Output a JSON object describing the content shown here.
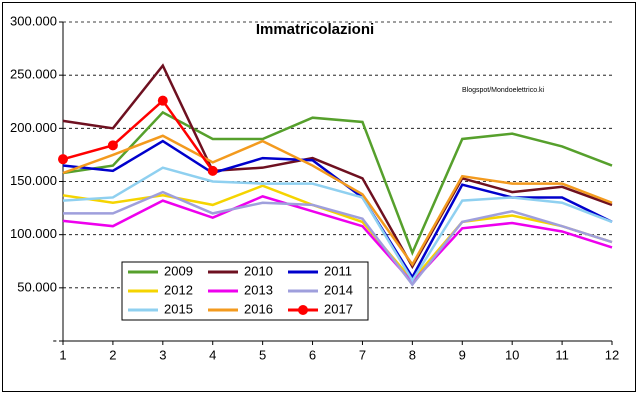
{
  "chart_data": {
    "type": "line",
    "title": "Immatricolazioni",
    "annotation": "Blogspot/Mondoelettrico.ki",
    "x": [
      1,
      2,
      3,
      4,
      5,
      6,
      7,
      8,
      9,
      10,
      11,
      12
    ],
    "xlim": [
      1,
      12
    ],
    "xticks": [
      1,
      2,
      3,
      4,
      5,
      6,
      7,
      8,
      9,
      10,
      11,
      12
    ],
    "ylim": [
      0,
      300000
    ],
    "yticks": [
      {
        "value": 0,
        "label": "-"
      },
      {
        "value": 50000,
        "label": "50.000"
      },
      {
        "value": 100000,
        "label": "100.000"
      },
      {
        "value": 150000,
        "label": "150.000"
      },
      {
        "value": 200000,
        "label": "200.000"
      },
      {
        "value": 250000,
        "label": "250.000"
      },
      {
        "value": 300000,
        "label": "300.000"
      }
    ],
    "grid": true,
    "series": [
      {
        "name": "2009",
        "color": "#56a02c",
        "values": [
          158000,
          165000,
          215000,
          190000,
          190000,
          210000,
          206000,
          83000,
          190000,
          195000,
          183000,
          165000
        ]
      },
      {
        "name": "2010",
        "color": "#6e1020",
        "values": [
          207000,
          200000,
          259000,
          160000,
          163000,
          172000,
          153000,
          70000,
          153000,
          140000,
          145000,
          128000
        ]
      },
      {
        "name": "2011",
        "color": "#0000cc",
        "values": [
          165000,
          160000,
          188000,
          158000,
          172000,
          170000,
          135000,
          60000,
          147000,
          135000,
          135000,
          112000
        ]
      },
      {
        "name": "2012",
        "color": "#f5d400",
        "values": [
          137000,
          130000,
          137000,
          128000,
          146000,
          128000,
          112000,
          57000,
          112000,
          118000,
          108000,
          93000
        ]
      },
      {
        "name": "2013",
        "color": "#ee00ee",
        "values": [
          113000,
          108000,
          132000,
          116000,
          136000,
          122000,
          108000,
          55000,
          106000,
          111000,
          103000,
          88000
        ]
      },
      {
        "name": "2014",
        "color": "#9f9fdc",
        "values": [
          120000,
          120000,
          140000,
          120000,
          130000,
          128000,
          115000,
          53000,
          112000,
          122000,
          108000,
          93000
        ]
      },
      {
        "name": "2015",
        "color": "#8fd0f0",
        "values": [
          132000,
          135000,
          163000,
          150000,
          148000,
          148000,
          135000,
          57000,
          132000,
          135000,
          130000,
          112000
        ]
      },
      {
        "name": "2016",
        "color": "#f39a1e",
        "values": [
          158000,
          175000,
          193000,
          168000,
          188000,
          165000,
          138000,
          72000,
          155000,
          148000,
          148000,
          130000
        ]
      },
      {
        "name": "2017",
        "color": "#ff0000",
        "markers": true,
        "values": [
          171000,
          184000,
          226000,
          160000,
          null,
          null,
          null,
          null,
          null,
          null,
          null,
          null
        ]
      }
    ]
  }
}
